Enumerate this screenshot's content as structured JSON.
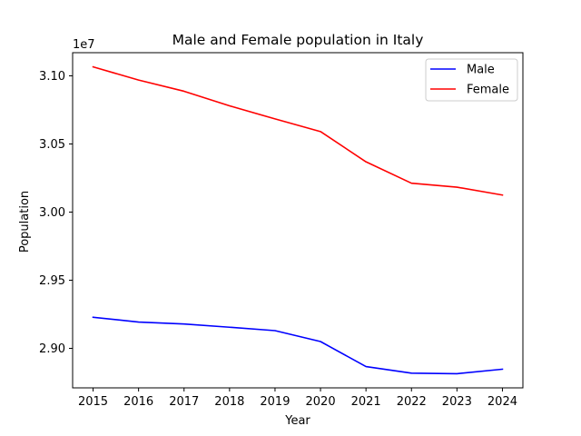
{
  "chart_data": {
    "type": "line",
    "title": "Male and Female population in Italy",
    "xlabel": "Year",
    "ylabel": "Population",
    "y_offset_label": "1e7",
    "x": [
      2015,
      2016,
      2017,
      2018,
      2019,
      2020,
      2021,
      2022,
      2023,
      2024
    ],
    "x_tick_labels": [
      "2015",
      "2016",
      "2017",
      "2018",
      "2019",
      "2020",
      "2021",
      "2022",
      "2023",
      "2024"
    ],
    "y_ticks": [
      2.9,
      2.95,
      3.0,
      3.05,
      3.1
    ],
    "y_tick_labels": [
      "2.90",
      "2.95",
      "3.00",
      "3.05",
      "3.10"
    ],
    "ylim": [
      2.871,
      3.117
    ],
    "xlim": [
      2014.55,
      2024.45
    ],
    "grid": false,
    "legend_position": "upper right",
    "series": [
      {
        "name": "Male",
        "color": "#0000ff",
        "values": [
          2.9228,
          2.9193,
          2.9179,
          2.9155,
          2.913,
          2.905,
          2.8866,
          2.8818,
          2.8814,
          2.8847
        ]
      },
      {
        "name": "Female",
        "color": "#ff0000",
        "values": [
          3.1066,
          3.0969,
          3.0887,
          3.078,
          3.0684,
          3.0591,
          3.0369,
          3.0212,
          3.0183,
          3.0125
        ]
      }
    ]
  }
}
